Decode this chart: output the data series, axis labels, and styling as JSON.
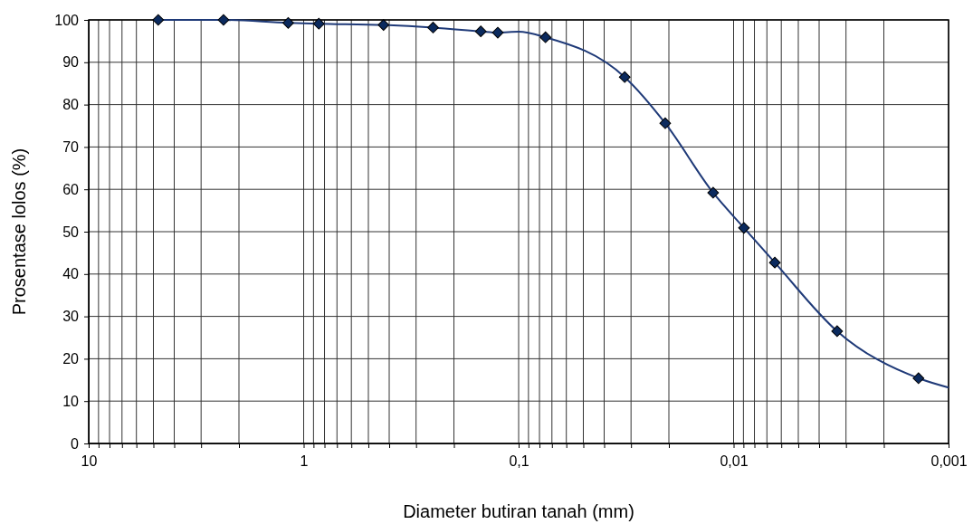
{
  "chart_data": {
    "type": "line",
    "xlabel": "Diameter butiran tanah (mm)",
    "ylabel": "Prosentase lolos (%)",
    "log": "x",
    "grid": true,
    "xlim": [
      10,
      0.001
    ],
    "ylim": [
      0,
      100
    ],
    "xticks": [
      {
        "value": 10,
        "label": "10"
      },
      {
        "value": 9,
        "label": null
      },
      {
        "value": 8,
        "label": null
      },
      {
        "value": 7,
        "label": null
      },
      {
        "value": 6,
        "label": null
      },
      {
        "value": 5,
        "label": null
      },
      {
        "value": 4,
        "label": null
      },
      {
        "value": 3,
        "label": null
      },
      {
        "value": 2,
        "label": null
      },
      {
        "value": 1,
        "label": "1"
      },
      {
        "value": 0.9,
        "label": null
      },
      {
        "value": 0.8,
        "label": null
      },
      {
        "value": 0.7,
        "label": null
      },
      {
        "value": 0.6,
        "label": null
      },
      {
        "value": 0.5,
        "label": null
      },
      {
        "value": 0.4,
        "label": null
      },
      {
        "value": 0.3,
        "label": null
      },
      {
        "value": 0.2,
        "label": null
      },
      {
        "value": 0.1,
        "label": "0,1"
      },
      {
        "value": 0.09,
        "label": null
      },
      {
        "value": 0.08,
        "label": null
      },
      {
        "value": 0.07,
        "label": null
      },
      {
        "value": 0.06,
        "label": null
      },
      {
        "value": 0.05,
        "label": null
      },
      {
        "value": 0.04,
        "label": null
      },
      {
        "value": 0.03,
        "label": null
      },
      {
        "value": 0.02,
        "label": null
      },
      {
        "value": 0.01,
        "label": "0,01"
      },
      {
        "value": 0.009,
        "label": null
      },
      {
        "value": 0.008,
        "label": null
      },
      {
        "value": 0.007,
        "label": null
      },
      {
        "value": 0.006,
        "label": null
      },
      {
        "value": 0.005,
        "label": null
      },
      {
        "value": 0.004,
        "label": null
      },
      {
        "value": 0.003,
        "label": null
      },
      {
        "value": 0.002,
        "label": null
      },
      {
        "value": 0.001,
        "label": "0,001"
      }
    ],
    "yticks": [
      0,
      10,
      20,
      30,
      40,
      50,
      60,
      70,
      80,
      90,
      100
    ],
    "series": [
      {
        "marker": "none",
        "line_style": "solid",
        "color": "#1f3a78",
        "x": [
          4.75,
          2.36,
          1.18,
          0.85,
          0.425,
          0.25,
          0.15,
          0.125,
          0.1,
          0.075,
          0.0321,
          0.0208,
          0.01245,
          0.00895,
          0.00643,
          0.0033,
          0.00138,
          0.001
        ],
        "values": [
          100,
          100,
          99.3,
          99.1,
          98.8,
          98.2,
          97.3,
          97.0,
          97.2,
          95.9,
          86.5,
          75.6,
          59.2,
          50.9,
          42.7,
          26.5,
          15.4,
          13.2
        ]
      },
      {
        "type": "scatter",
        "marker": "diamond",
        "color": "#0b2a5e",
        "x": [
          4.75,
          2.36,
          1.18,
          0.85,
          0.425,
          0.25,
          0.15,
          0.125,
          0.075,
          0.0321,
          0.0208,
          0.01245,
          0.00895,
          0.00643,
          0.0033,
          0.00138
        ],
        "values": [
          100,
          100,
          99.3,
          99.1,
          98.8,
          98.2,
          97.3,
          97.0,
          95.9,
          86.5,
          75.6,
          59.2,
          50.9,
          42.7,
          26.5,
          15.4
        ]
      }
    ]
  }
}
